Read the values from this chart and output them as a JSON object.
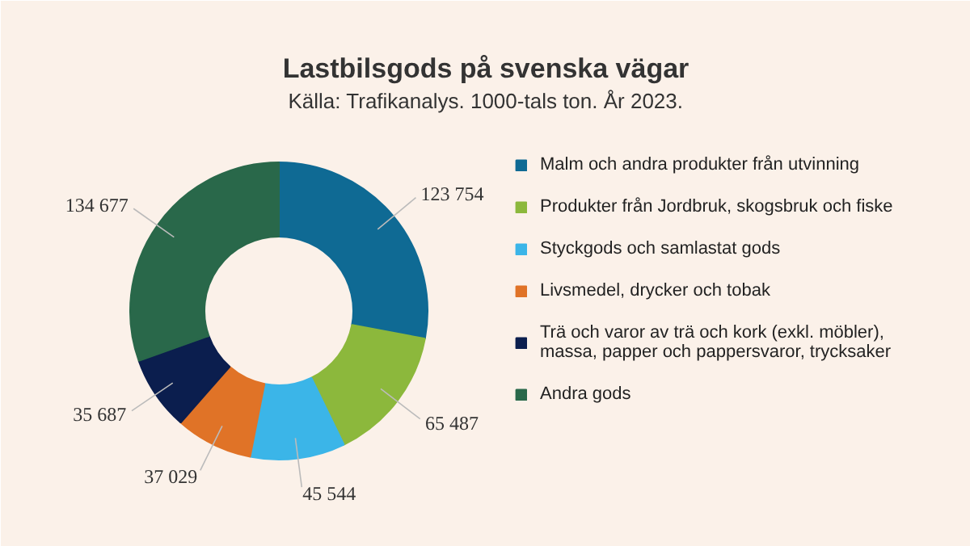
{
  "chart_data": {
    "type": "donut",
    "title": "Lastbilsgods på svenska vägar",
    "subtitle": "Källa: Trafikanalys. 1000-tals ton. År 2023.",
    "categories": [
      "Malm och andra produkter från utvinning",
      "Produkter från Jordbruk, skogsbruk och fiske",
      "Styckgods och samlastat gods",
      "Livsmedel, drycker och tobak",
      "Trä och varor av trä och kork (exkl. möbler), massa, papper och pappersvaror, trycksaker",
      "Andra gods"
    ],
    "values": [
      123754,
      65487,
      45544,
      37029,
      35687,
      134677
    ],
    "colors": [
      "#0f6a94",
      "#8cb83c",
      "#3bb5e8",
      "#e07327",
      "#0b1e4e",
      "#29684a"
    ],
    "data_labels": true,
    "legend": "right"
  }
}
